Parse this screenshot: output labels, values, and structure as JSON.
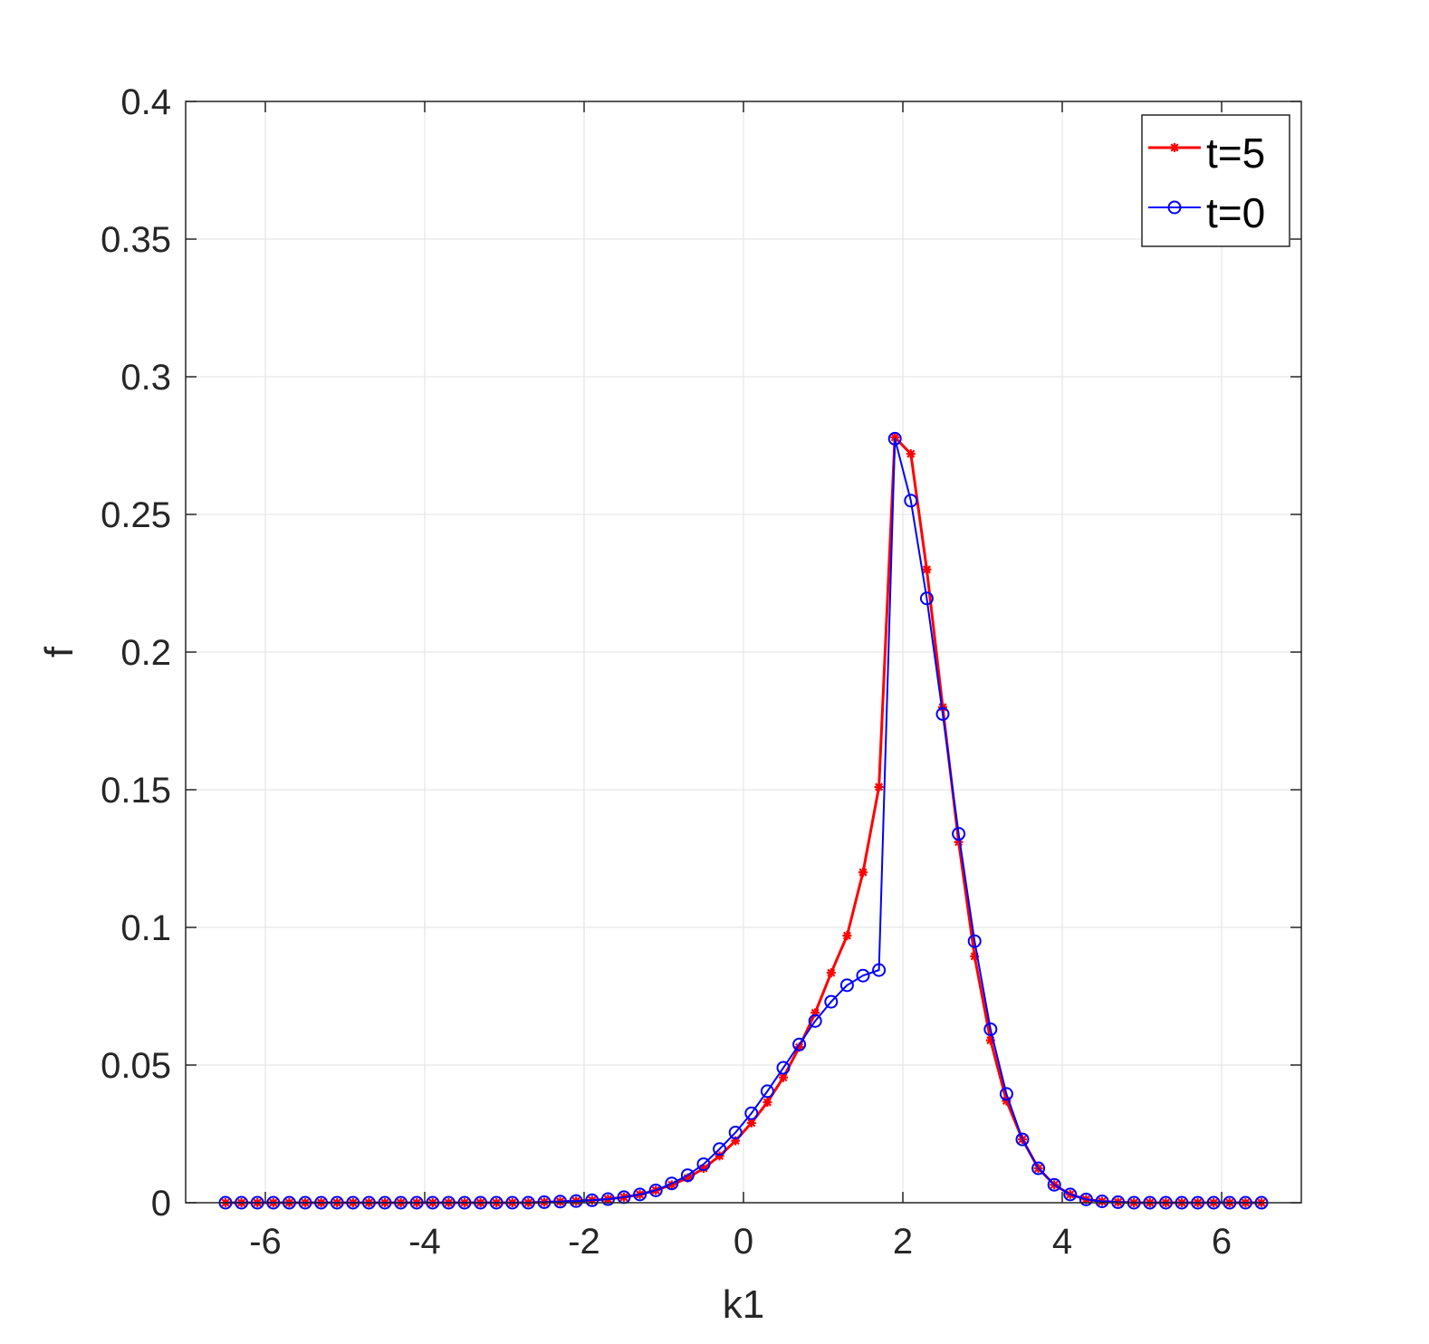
{
  "chart_data": {
    "type": "line",
    "title": "",
    "xlabel": "k1",
    "ylabel": "f",
    "xlim": [
      -7,
      7
    ],
    "ylim": [
      0,
      0.4
    ],
    "xticks": [
      -6,
      -4,
      -2,
      0,
      2,
      4,
      6
    ],
    "xtick_labels": [
      "-6",
      "-4",
      "-2",
      "0",
      "2",
      "4",
      "6"
    ],
    "yticks": [
      0,
      0.05,
      0.1,
      0.15,
      0.2,
      0.25,
      0.3,
      0.35,
      0.4
    ],
    "ytick_labels": [
      "0",
      "0.05",
      "0.1",
      "0.15",
      "0.2",
      "0.25",
      "0.3",
      "0.35",
      "0.4"
    ],
    "grid": true,
    "legend_position": "top-right",
    "x": [
      -6.5,
      -6.3,
      -6.1,
      -5.9,
      -5.7,
      -5.5,
      -5.3,
      -5.1,
      -4.9,
      -4.7,
      -4.5,
      -4.3,
      -4.1,
      -3.9,
      -3.7,
      -3.5,
      -3.3,
      -3.1,
      -2.9,
      -2.7,
      -2.5,
      -2.3,
      -2.1,
      -1.9,
      -1.7,
      -1.5,
      -1.3,
      -1.1,
      -0.9,
      -0.7,
      -0.5,
      -0.3,
      -0.1,
      0.1,
      0.3,
      0.5,
      0.7,
      0.9,
      1.1,
      1.3,
      1.5,
      1.7,
      1.9,
      2.1,
      2.3,
      2.5,
      2.7,
      2.9,
      3.1,
      3.3,
      3.5,
      3.7,
      3.9,
      4.1,
      4.3,
      4.5,
      4.7,
      4.9,
      5.1,
      5.3,
      5.5,
      5.7,
      5.9,
      6.1,
      6.3,
      6.5
    ],
    "series": [
      {
        "name": "t=5",
        "color": "#ff0000",
        "marker": "asterisk",
        "values": [
          0,
          0,
          0,
          0,
          0,
          0,
          0,
          0,
          0,
          0,
          0,
          0,
          0,
          0,
          0,
          0,
          0,
          0,
          0,
          0,
          0.0002,
          0.0004,
          0.0006,
          0.0009,
          0.0013,
          0.002,
          0.003,
          0.0045,
          0.0065,
          0.009,
          0.0125,
          0.017,
          0.0225,
          0.029,
          0.0365,
          0.0455,
          0.0565,
          0.069,
          0.0835,
          0.097,
          0.12,
          0.151,
          0.278,
          0.272,
          0.23,
          0.18,
          0.131,
          0.0895,
          0.059,
          0.037,
          0.023,
          0.0125,
          0.0065,
          0.003,
          0.0012,
          0.0005,
          0.0002,
          0,
          0,
          0,
          0,
          0,
          0,
          0,
          0,
          0
        ]
      },
      {
        "name": "t=0",
        "color": "#0000ff",
        "marker": "circle",
        "values": [
          0,
          0,
          0,
          0,
          0,
          0,
          0,
          0,
          0,
          0,
          0,
          0,
          0,
          0,
          0,
          0,
          0,
          0,
          0,
          0,
          0.0002,
          0.0004,
          0.0006,
          0.0009,
          0.0013,
          0.002,
          0.003,
          0.0045,
          0.007,
          0.01,
          0.014,
          0.0195,
          0.0255,
          0.0325,
          0.0405,
          0.049,
          0.0575,
          0.066,
          0.073,
          0.079,
          0.0825,
          0.0845,
          0.2775,
          0.255,
          0.2195,
          0.1775,
          0.134,
          0.095,
          0.063,
          0.0395,
          0.023,
          0.0125,
          0.0065,
          0.003,
          0.0012,
          0.0005,
          0.0002,
          0,
          0,
          0,
          0,
          0,
          0,
          0,
          0,
          0
        ]
      }
    ]
  }
}
